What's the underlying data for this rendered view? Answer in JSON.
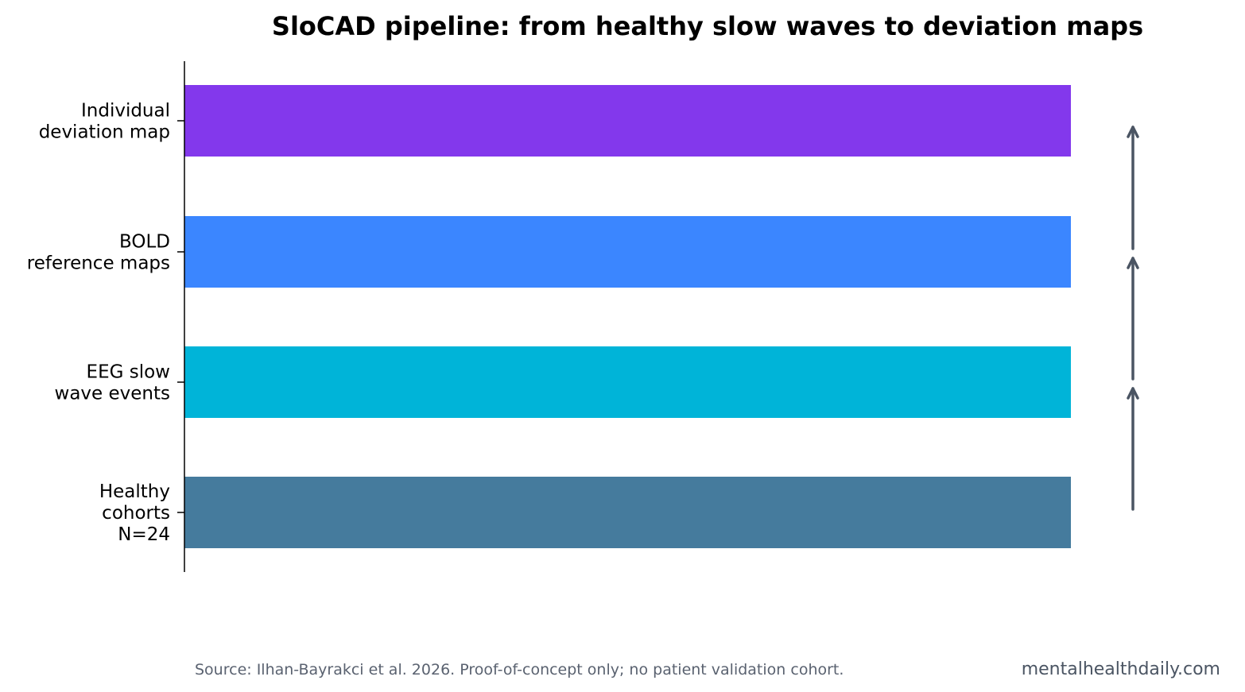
{
  "chart_data": {
    "type": "bar",
    "orientation": "horizontal",
    "title": "SloCAD pipeline: from healthy slow waves to deviation maps",
    "categories": [
      [
        "Healthy",
        "cohorts",
        "N=24"
      ],
      [
        "EEG slow",
        "wave events"
      ],
      [
        "BOLD",
        "reference maps"
      ],
      [
        "Individual",
        "deviation map"
      ]
    ],
    "values": [
      1,
      1,
      1,
      1
    ],
    "colors": [
      "#457b9d",
      "#00b4d8",
      "#3b86ff",
      "#8338ec"
    ],
    "xlim": [
      0,
      1
    ],
    "xlabel": "",
    "ylabel": "",
    "grid": false,
    "legend": "none",
    "arrows": {
      "direction": "up",
      "count": 3,
      "color": "#4b5563"
    }
  },
  "footer": {
    "source": "Source: Ilhan-Bayrakci et al. 2026. Proof-of-concept only; no patient validation cohort.",
    "credit": "mentalhealthdaily.com"
  }
}
